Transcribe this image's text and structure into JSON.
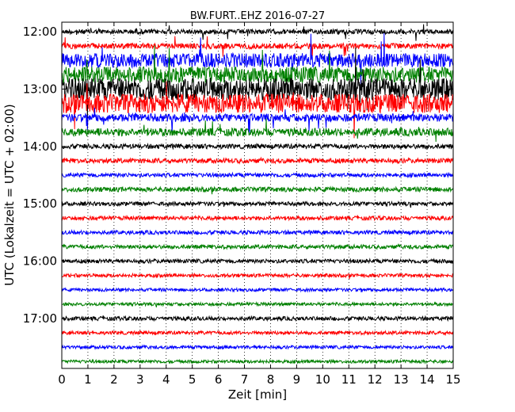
{
  "chart_data": {
    "type": "line",
    "title": "BW.FURT..EHZ 2016-07-27",
    "xlabel": "Zeit  [min]",
    "ylabel": "UTC (Lokalzeit = UTC + 02:00)",
    "xlim": [
      0,
      15
    ],
    "x_ticks": [
      "0",
      "1",
      "2",
      "3",
      "4",
      "5",
      "6",
      "7",
      "8",
      "9",
      "10",
      "11",
      "12",
      "13",
      "14",
      "15"
    ],
    "y_ticks": [
      "12:00",
      "13:00",
      "14:00",
      "15:00",
      "16:00",
      "17:00"
    ],
    "trace_interval_minutes": 15,
    "first_trace": "12:00",
    "trace_count": 24,
    "trace_colors": [
      "#000000",
      "#ff0000",
      "#0000ff",
      "#008000"
    ],
    "grid": "vertical dotted",
    "legend": "none"
  }
}
